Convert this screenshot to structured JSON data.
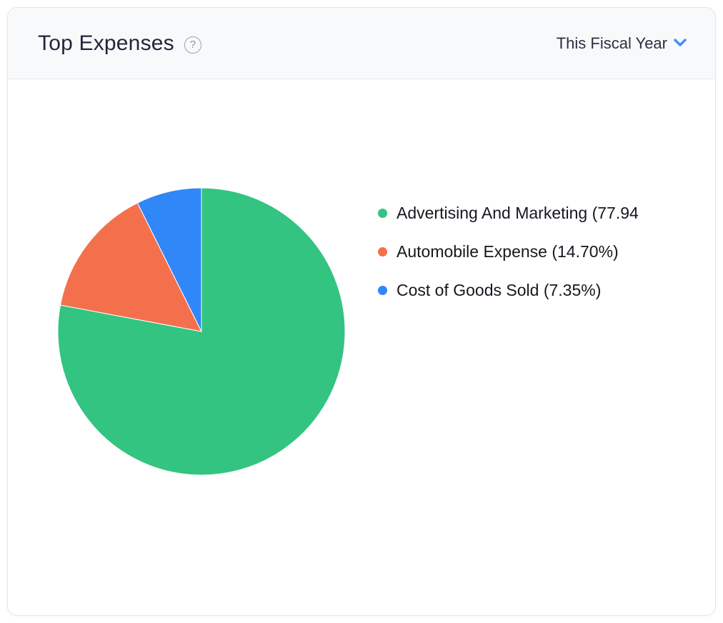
{
  "card": {
    "header": {
      "title": "Top Expenses",
      "help_icon": "question-mark-circle-icon",
      "help_glyph": "?",
      "period_selector": {
        "label": "This Fiscal Year",
        "chevron_color": "#408dfb"
      }
    }
  },
  "chart_data": {
    "type": "pie",
    "title": "Top Expenses",
    "period": "This Fiscal Year",
    "labels": [
      "Advertising And Marketing",
      "Automobile Expense",
      "Cost of Goods Sold"
    ],
    "values": [
      77.94,
      14.7,
      7.35
    ],
    "colors": [
      "#33c481",
      "#f4704c",
      "#3087f7"
    ],
    "start_angle_deg": -90,
    "direction": "clockwise",
    "legend_position": "right",
    "radius_px": 201
  },
  "legend": {
    "items": [
      {
        "label": "Advertising And Marketing (77.94",
        "color": "#33c481"
      },
      {
        "label": "Automobile Expense (14.70%)",
        "color": "#f4704c"
      },
      {
        "label": "Cost of Goods Sold (7.35%)",
        "color": "#3087f7"
      }
    ]
  }
}
